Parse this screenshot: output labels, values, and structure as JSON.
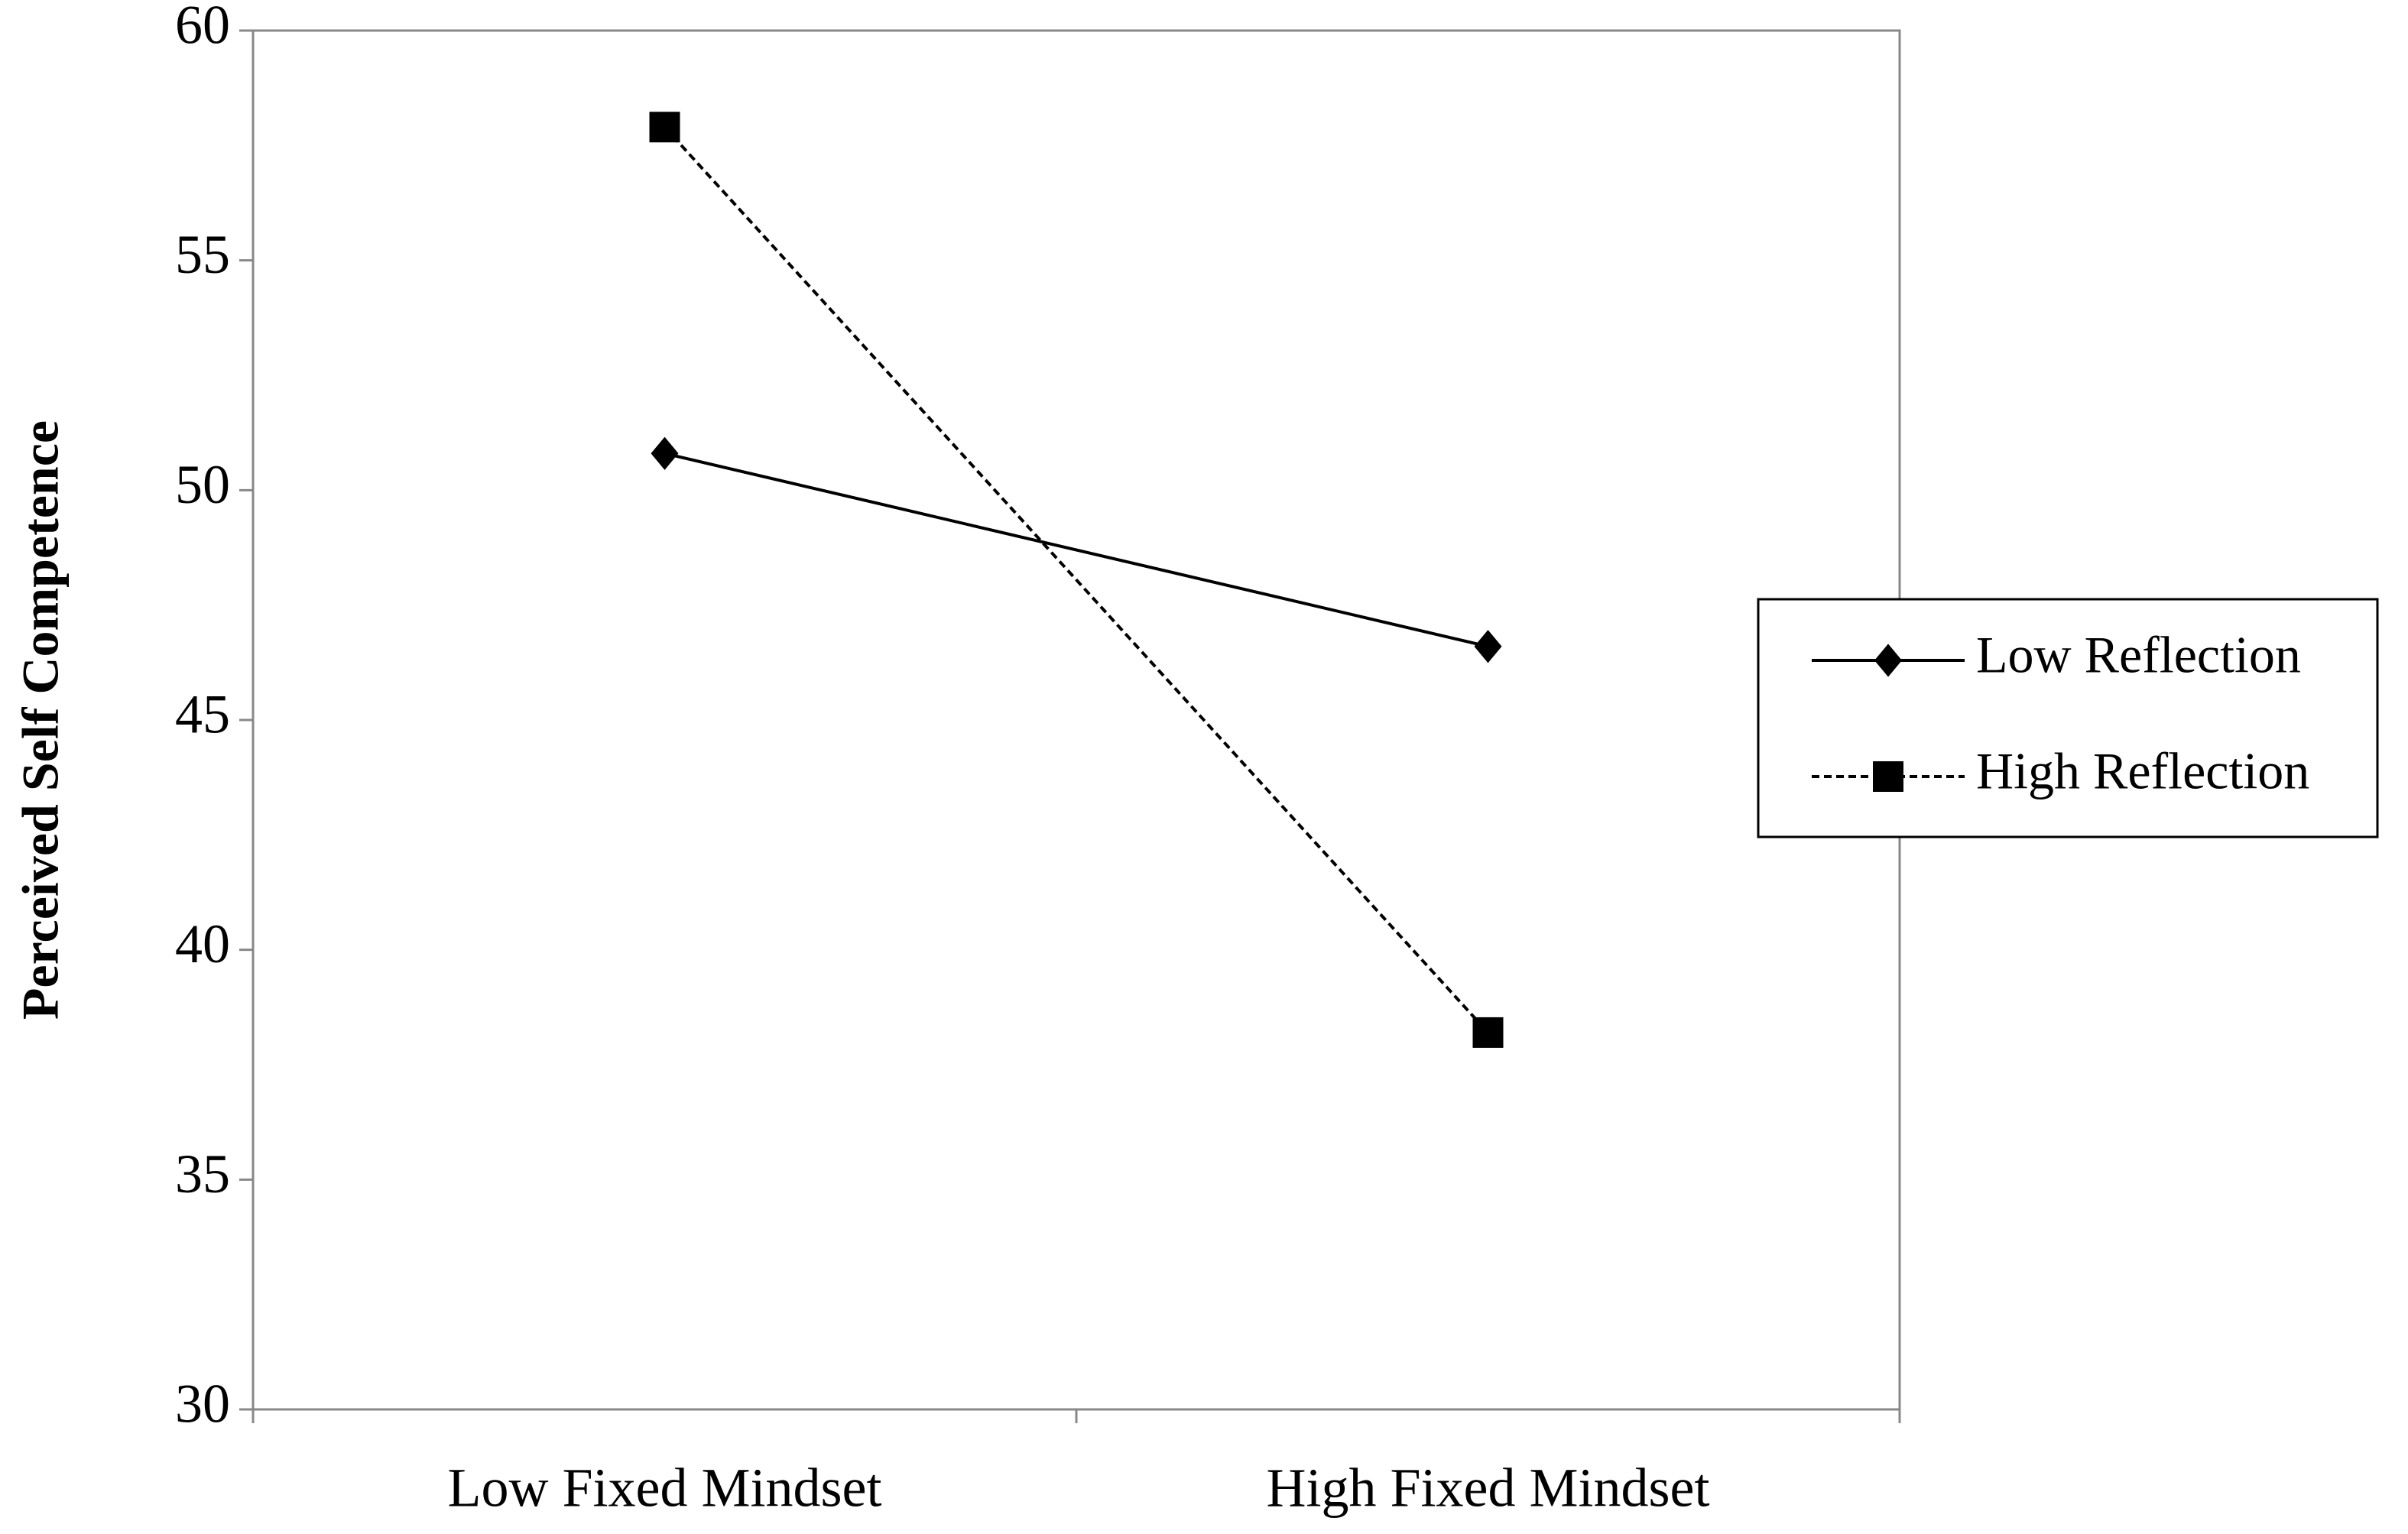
{
  "chart_data": {
    "type": "line",
    "ylabel": "Perceived Self Competence",
    "categories": [
      "Low Fixed Mindset",
      "High Fixed Mindset"
    ],
    "series": [
      {
        "name": "Low Reflection",
        "color": "#000000",
        "marker": "diamond",
        "dash": "solid",
        "values": [
          50.8,
          46.6
        ]
      },
      {
        "name": "High Reflection",
        "color": "#000000",
        "marker": "square",
        "dash": "dashed",
        "values": [
          57.9,
          38.2
        ]
      }
    ],
    "ylim": [
      30,
      60
    ],
    "yticks": [
      30,
      35,
      40,
      45,
      50,
      55,
      60
    ],
    "legend": "right"
  }
}
